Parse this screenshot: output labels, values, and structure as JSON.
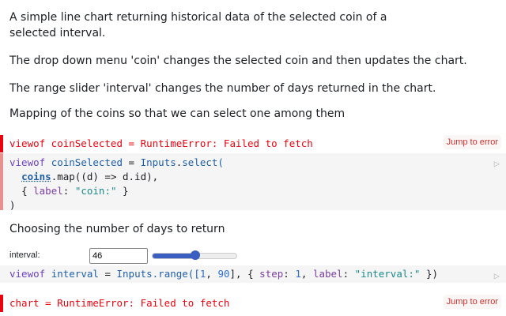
{
  "paragraphs": [
    "A simple line chart returning historical data of the selected coin of a selected interval.",
    "The drop down menu 'coin' changes the selected coin and then updates the chart.",
    "The range slider 'interval' changes the number of days returned in the chart.",
    "Mapping of the coins so that we can select one among them",
    "Choosing the number of days to return"
  ],
  "errors": {
    "coin": "viewof coinSelected = RuntimeError: Failed to fetch",
    "chart": "chart = RuntimeError: Failed to fetch",
    "jump_label": "Jump to error"
  },
  "interval": {
    "label": "interval:",
    "value": "46",
    "min": 1,
    "max": 90,
    "step": 1
  },
  "code": {
    "c1": [
      "viewof",
      "coinSelected",
      "=",
      "Inputs",
      "select(",
      "coins",
      ".map((d) => d.id),",
      "{ ",
      "label",
      ": ",
      "\"coin:\"",
      " }",
      ")"
    ],
    "c2": [
      "viewof",
      "interval",
      "=",
      "Inputs",
      ".range([",
      "1",
      ", ",
      "90",
      "], { ",
      "step",
      ": ",
      "1",
      ", ",
      "label",
      ": ",
      "\"interval:\"",
      " })"
    ]
  },
  "colors": {
    "error": "#e7040f",
    "accent": "#3b5fc0"
  }
}
